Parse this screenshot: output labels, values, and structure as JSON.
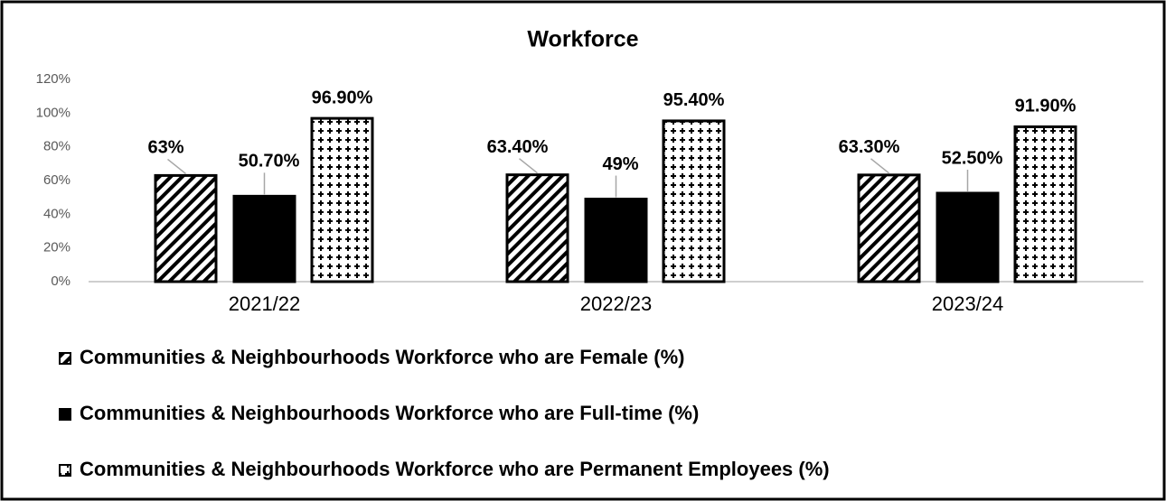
{
  "chart_data": {
    "type": "bar",
    "title": "Workforce",
    "categories": [
      "2021/22",
      "2022/23",
      "2023/24"
    ],
    "series": [
      {
        "name": "Communities & Neighbourhoods Workforce who are Female (%)",
        "color": "#000000",
        "pattern": "diagonal",
        "values": [
          63,
          63.4,
          63.3
        ],
        "value_labels": [
          "63%",
          "63.40%",
          "63.30%"
        ]
      },
      {
        "name": "Communities & Neighbourhoods Workforce who are Full-time (%)",
        "color": "#000000",
        "pattern": "solid",
        "values": [
          50.7,
          49,
          52.5
        ],
        "value_labels": [
          "50.70%",
          "49%",
          "52.50%"
        ]
      },
      {
        "name": "Communities & Neighbourhoods Workforce who are Permanent Employees (%)",
        "color": "#000000",
        "pattern": "dots",
        "values": [
          96.9,
          95.4,
          91.9
        ],
        "value_labels": [
          "96.90%",
          "95.40%",
          "91.90%"
        ]
      }
    ],
    "ylim": [
      0,
      120
    ],
    "yticks": [
      {
        "value": 0,
        "label": "0%"
      },
      {
        "value": 20,
        "label": "20%"
      },
      {
        "value": 40,
        "label": "40%"
      },
      {
        "value": 60,
        "label": "60%"
      },
      {
        "value": 80,
        "label": "80%"
      },
      {
        "value": 100,
        "label": "100%"
      },
      {
        "value": 120,
        "label": "120%"
      }
    ],
    "grid": false,
    "legend": "bottom"
  }
}
